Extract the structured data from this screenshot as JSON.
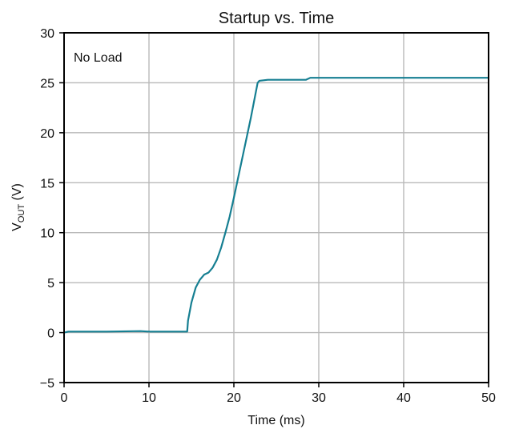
{
  "chart_data": {
    "type": "line",
    "title": "Startup vs. Time",
    "xlabel": "Time (ms)",
    "ylabel": {
      "main": "V",
      "subscript": "OUT",
      "suffix": " (V)"
    },
    "xlim": [
      0,
      50
    ],
    "ylim": [
      -5,
      30
    ],
    "xticks": [
      0,
      10,
      20,
      30,
      40,
      50
    ],
    "yticks": [
      -5,
      0,
      5,
      10,
      15,
      20,
      25,
      30
    ],
    "ytick_labels": [
      "−5",
      "0",
      "5",
      "10",
      "15",
      "20",
      "25",
      "30"
    ],
    "grid": true,
    "annotation": "No Load",
    "series": [
      {
        "color": "#167f92",
        "x": [
          0,
          0.5,
          2,
          5,
          9,
          10,
          12,
          14.5,
          14.6,
          15.0,
          15.5,
          16.0,
          16.5,
          17.0,
          17.5,
          18.0,
          18.5,
          19.0,
          19.5,
          20.0,
          21.0,
          22.0,
          22.8,
          23.0,
          24,
          26,
          28.5,
          29.0,
          29.5,
          31,
          40,
          50
        ],
        "y": [
          0.0,
          0.1,
          0.1,
          0.1,
          0.15,
          0.1,
          0.1,
          0.1,
          1.2,
          3.0,
          4.5,
          5.3,
          5.8,
          6.0,
          6.5,
          7.3,
          8.5,
          10.0,
          11.6,
          13.5,
          17.5,
          21.5,
          25.0,
          25.2,
          25.3,
          25.3,
          25.3,
          25.5,
          25.5,
          25.5,
          25.5,
          25.5
        ]
      }
    ]
  }
}
